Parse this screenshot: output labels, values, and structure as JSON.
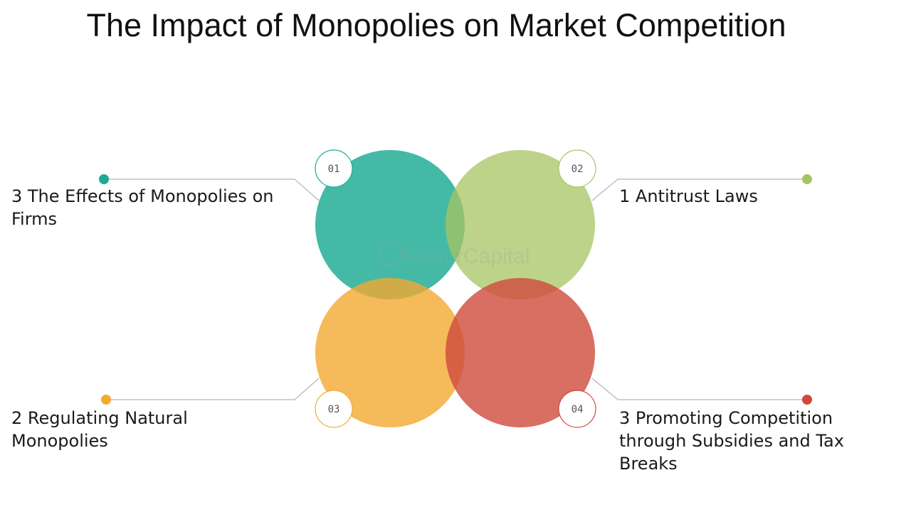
{
  "title": "The Impact of Monopolies on Market Competition",
  "watermark": "FasterCapital",
  "colors": {
    "teal": "#1bab93",
    "green": "#a5c461",
    "orange": "#f3a92f",
    "red": "#cf4a3c",
    "connector": "#b5b5b5"
  },
  "items": [
    {
      "number": "01",
      "label": "3 The Effects of Monopolies on Firms",
      "color": "#1bab93"
    },
    {
      "number": "02",
      "label": "1 Antitrust Laws",
      "color": "#a5c461"
    },
    {
      "number": "03",
      "label": "2 Regulating Natural Monopolies",
      "color": "#f3a92f"
    },
    {
      "number": "04",
      "label": "3 Promoting Competition through Subsidies and Tax Breaks",
      "color": "#cf4a3c"
    }
  ]
}
